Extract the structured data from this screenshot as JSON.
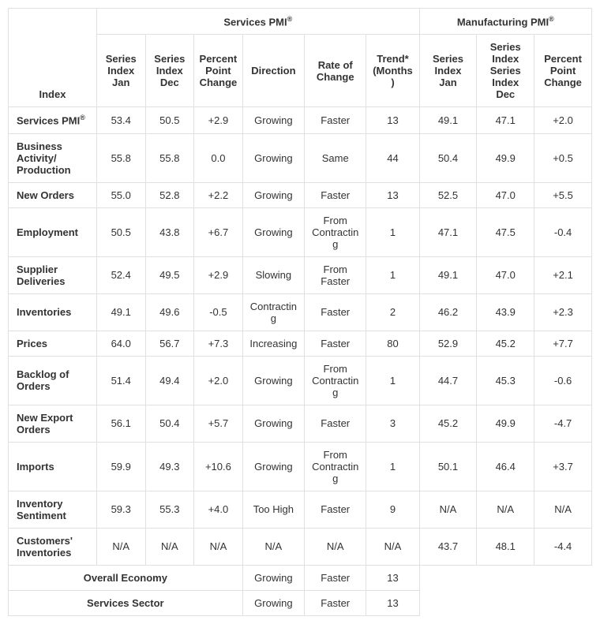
{
  "type": "table",
  "background_color": "#ffffff",
  "grid_color": "#e0e0e0",
  "text_color": "#333333",
  "header_fontweight": "600",
  "body_fontsize": 13,
  "group_headers": {
    "services": "Services PMI",
    "manufacturing": "Manufacturing PMI",
    "registered": "®"
  },
  "columns": {
    "index": "Index",
    "s_jan": "Series Index Jan",
    "s_dec": "Series Index Dec",
    "s_pct": "Percent Point Change",
    "direction": "Direction",
    "rate": "Rate of Change",
    "trend": "Trend* (Months)",
    "m_jan": "Series Index Jan",
    "m_dec": "Series Index Series Index Dec",
    "m_pct": "Percent Point Change"
  },
  "rows": [
    {
      "label": "Services PMI",
      "reg": "®",
      "s_jan": "53.4",
      "s_dec": "50.5",
      "s_pct": "+2.9",
      "dir": "Growing",
      "rate": "Faster",
      "trend": "13",
      "m_jan": "49.1",
      "m_dec": "47.1",
      "m_pct": "+2.0"
    },
    {
      "label": "Business Activity/ Production",
      "s_jan": "55.8",
      "s_dec": "55.8",
      "s_pct": "0.0",
      "dir": "Growing",
      "rate": "Same",
      "trend": "44",
      "m_jan": "50.4",
      "m_dec": "49.9",
      "m_pct": "+0.5"
    },
    {
      "label": "New Orders",
      "s_jan": "55.0",
      "s_dec": "52.8",
      "s_pct": "+2.2",
      "dir": "Growing",
      "rate": "Faster",
      "trend": "13",
      "m_jan": "52.5",
      "m_dec": "47.0",
      "m_pct": "+5.5"
    },
    {
      "label": "Employment",
      "s_jan": "50.5",
      "s_dec": "43.8",
      "s_pct": "+6.7",
      "dir": "Growing",
      "rate": "From Contracting",
      "trend": "1",
      "m_jan": "47.1",
      "m_dec": "47.5",
      "m_pct": "-0.4"
    },
    {
      "label": "Supplier Deliveries",
      "s_jan": "52.4",
      "s_dec": "49.5",
      "s_pct": "+2.9",
      "dir": "Slowing",
      "rate": "From Faster",
      "trend": "1",
      "m_jan": "49.1",
      "m_dec": "47.0",
      "m_pct": "+2.1"
    },
    {
      "label": "Inventories",
      "s_jan": "49.1",
      "s_dec": "49.6",
      "s_pct": "-0.5",
      "dir": "Contracting",
      "rate": "Faster",
      "trend": "2",
      "m_jan": "46.2",
      "m_dec": "43.9",
      "m_pct": "+2.3"
    },
    {
      "label": "Prices",
      "s_jan": "64.0",
      "s_dec": "56.7",
      "s_pct": "+7.3",
      "dir": "Increasing",
      "rate": "Faster",
      "trend": "80",
      "m_jan": "52.9",
      "m_dec": "45.2",
      "m_pct": "+7.7"
    },
    {
      "label": "Backlog of Orders",
      "s_jan": "51.4",
      "s_dec": "49.4",
      "s_pct": "+2.0",
      "dir": "Growing",
      "rate": "From Contracting",
      "trend": "1",
      "m_jan": "44.7",
      "m_dec": "45.3",
      "m_pct": "-0.6"
    },
    {
      "label": "New Export Orders",
      "s_jan": "56.1",
      "s_dec": "50.4",
      "s_pct": "+5.7",
      "dir": "Growing",
      "rate": "Faster",
      "trend": "3",
      "m_jan": "45.2",
      "m_dec": "49.9",
      "m_pct": "-4.7"
    },
    {
      "label": "Imports",
      "s_jan": "59.9",
      "s_dec": "49.3",
      "s_pct": "+10.6",
      "dir": "Growing",
      "rate": "From Contracting",
      "trend": "1",
      "m_jan": "50.1",
      "m_dec": "46.4",
      "m_pct": "+3.7"
    },
    {
      "label": "Inventory Sentiment",
      "s_jan": "59.3",
      "s_dec": "55.3",
      "s_pct": "+4.0",
      "dir": "Too High",
      "rate": "Faster",
      "trend": "9",
      "m_jan": "N/A",
      "m_dec": "N/A",
      "m_pct": "N/A"
    },
    {
      "label": "Customers' Inventories",
      "s_jan": "N/A",
      "s_dec": "N/A",
      "s_pct": "N/A",
      "dir": "N/A",
      "rate": "N/A",
      "trend": "N/A",
      "m_jan": "43.7",
      "m_dec": "48.1",
      "m_pct": "-4.4"
    }
  ],
  "summary": [
    {
      "label": "Overall Economy",
      "dir": "Growing",
      "rate": "Faster",
      "trend": "13"
    },
    {
      "label": "Services Sector",
      "dir": "Growing",
      "rate": "Faster",
      "trend": "13"
    }
  ]
}
